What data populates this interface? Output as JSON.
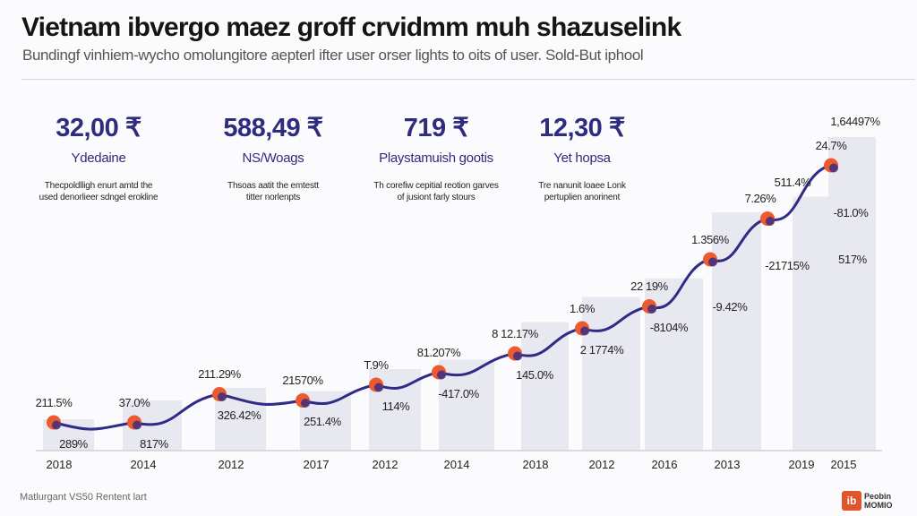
{
  "header": {
    "title": "Vietnam ibvergo maez groff crvidmm muh shazuselink",
    "subtitle": "Bundingf vinhiem-wycho omolungitore aepterl ifter user orser lights to oits of user. Sold-But iphool"
  },
  "stats": [
    {
      "value": "32,00 ₹",
      "label": "Ydedaine",
      "desc": "Thecpoldlligh enurt amtd the used denorlieer sdngel erokline"
    },
    {
      "value": "588,49 ₹",
      "label": "NS/Woags",
      "desc": "Thsoas aatit the emtestt titter norlenpts"
    },
    {
      "value": "719 ₹",
      "label": "Playstamuish gootis",
      "desc": "Th corefiw cepitial reotion garves of jusiont farly stours"
    },
    {
      "value": "12,30 ₹",
      "label": "Yet hopsa",
      "desc": "Tre nanunit loaee Lonk pertuplien anorinent"
    }
  ],
  "chart_data": {
    "type": "bar",
    "categories": [
      "2018",
      "2014",
      "2012",
      "2017",
      "2012",
      "2014",
      "2018",
      "2012",
      "2016",
      "2013",
      "2019",
      "2015"
    ],
    "series": [
      {
        "name": "bars",
        "type": "bar",
        "values": [
          10,
          16,
          20,
          19,
          26,
          29,
          41,
          49,
          55,
          76,
          81,
          100
        ]
      },
      {
        "name": "line",
        "type": "line",
        "values": [
          9,
          9,
          18,
          16,
          21,
          25,
          31,
          39,
          46,
          61,
          74,
          91
        ]
      }
    ],
    "ylim": [
      0,
      105
    ],
    "annotations": {
      "top": [
        "211.5%",
        "37.0%",
        "211.29%",
        "21570%",
        "T.9%",
        "81.207%",
        "8 12.17%",
        "1.6%",
        "22 19%",
        "1.356%",
        "7.26%",
        "24.7%"
      ],
      "bottom": [
        "289%",
        "817%",
        "326.42%",
        "251.4%",
        "114%",
        "-417.0%",
        "145.0%",
        "2 1774%",
        "-8104%",
        "-9.42%",
        "-21715%",
        "-81.0%"
      ],
      "extra": [
        "511.4%",
        "1,64497%",
        "517%"
      ]
    },
    "colors": {
      "bar": "#e4e4ef",
      "line": "#2f2b86",
      "point": "#ec5a2e"
    }
  },
  "footer": {
    "source": "Matlurgant VS50 Rentent lart",
    "logo_text": "Peobin MOMIO",
    "logo_mark": "ib"
  }
}
